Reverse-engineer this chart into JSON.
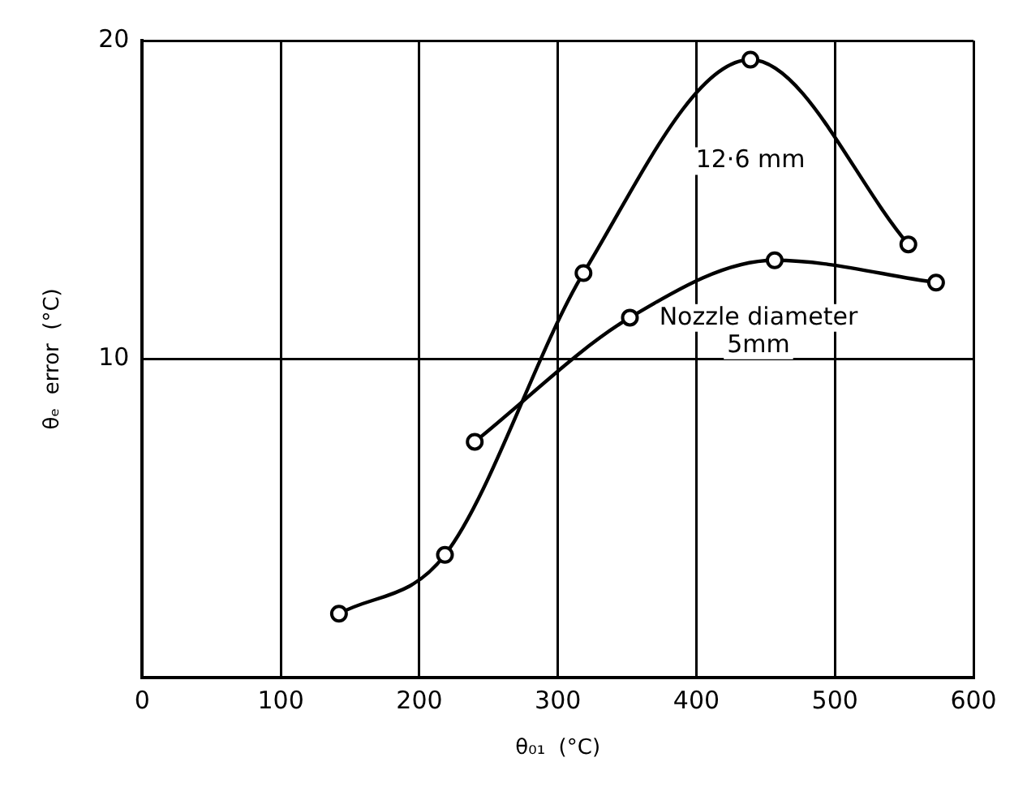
{
  "chart_data": {
    "type": "line",
    "xlabel": "θ₀₁  (°C)",
    "ylabel": "θₑ  error  (°C)",
    "xlim": [
      0,
      600
    ],
    "xticks": [
      0,
      100,
      200,
      300,
      400,
      500,
      600
    ],
    "ylim": [
      0,
      20
    ],
    "yticks": [
      {
        "value": 0,
        "label": null
      },
      10,
      20
    ],
    "grid": true,
    "legend": false,
    "marker": "circle",
    "line_style": "solid",
    "series": [
      {
        "name": "12·6 mm",
        "color": "#000000",
        "x": [
          142,
          218.5,
          318.5,
          439,
          553
        ],
        "values": [
          2.0,
          3.85,
          12.7,
          19.4,
          13.6
        ]
      },
      {
        "name": "Nozzle diameter 5mm",
        "color": "#000000",
        "x": [
          240,
          352,
          456.5,
          573
        ],
        "values": [
          7.4,
          11.3,
          13.1,
          12.4
        ]
      }
    ]
  }
}
